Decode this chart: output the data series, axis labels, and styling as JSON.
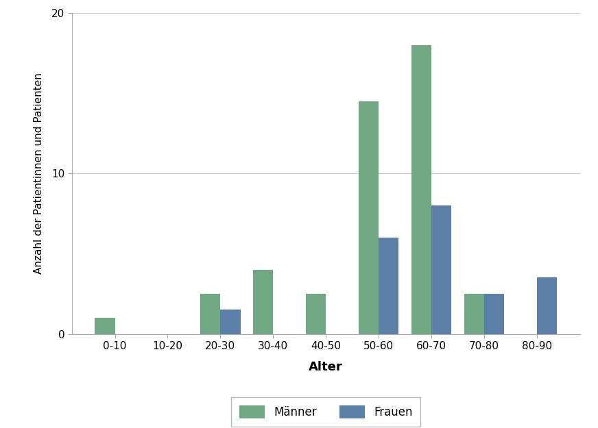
{
  "categories": [
    "0-10",
    "10-20",
    "20-30",
    "30-40",
    "40-50",
    "50-60",
    "60-70",
    "70-80",
    "80-90"
  ],
  "maenner": [
    1,
    0,
    2.5,
    4,
    2.5,
    14.5,
    18,
    2.5,
    0
  ],
  "frauen": [
    0,
    0,
    1.5,
    0,
    0,
    6,
    8,
    2.5,
    3.5
  ],
  "maenner_color": "#6fa882",
  "frauen_color": "#5b7fa6",
  "xlabel": "Alter",
  "ylabel": "Anzahl der Patientinnen und Patienten",
  "ylim": [
    0,
    20
  ],
  "yticks": [
    0,
    10,
    20
  ],
  "legend_maenner": "Männer",
  "legend_frauen": "Frauen",
  "bar_width": 0.38,
  "grid_color": "#cccccc",
  "background_color": "#ffffff",
  "spine_color": "#aaaaaa"
}
